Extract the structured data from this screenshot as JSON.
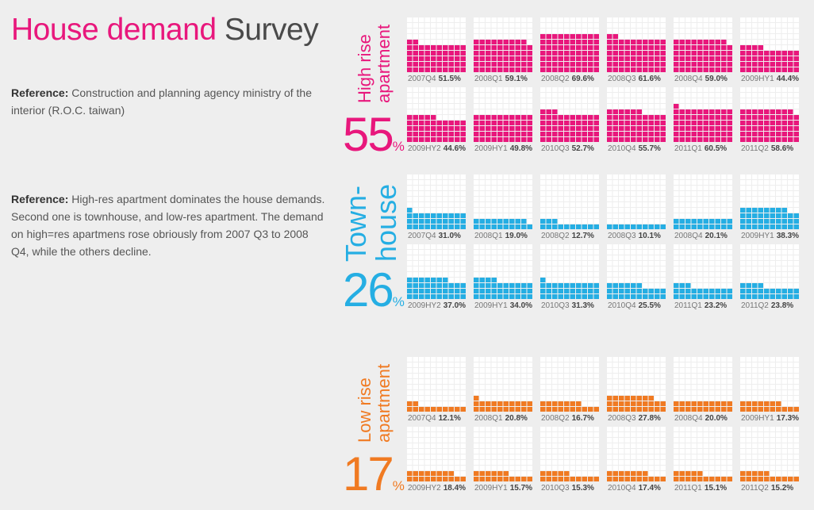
{
  "header": {
    "title_accent": "House demand",
    "title_rest": "Survey"
  },
  "references": [
    {
      "label": "Reference:",
      "text": "Construction and planning agency ministry of the interior (R.O.C. taiwan)"
    },
    {
      "label": "Reference:",
      "text": "High-res apartment dominates the house demands. Second one is townhouse, and low-res apartment. The demand on high=res apartmens rose obriously from 2007 Q3 to 2008 Q4, while the others decline."
    }
  ],
  "colors": {
    "background": "#eeeeee",
    "empty_cell": "#ffffff",
    "title_accent": "#e8177c",
    "text": "#555555"
  },
  "chart_data": {
    "type": "waffle",
    "series": [
      {
        "key": "high",
        "label_lines": [
          "High rise",
          "apartment"
        ],
        "color": "#e8177c",
        "overall_value": "55",
        "overall_unit": "%",
        "periods": [
          "2007Q4",
          "2008Q1",
          "2008Q2",
          "2008Q3",
          "2008Q4",
          "2009HY1",
          "2009HY2",
          "2009HY1",
          "2010Q3",
          "2010Q4",
          "2011Q1",
          "2011Q2"
        ],
        "values": [
          51.5,
          59.1,
          69.6,
          61.6,
          59.0,
          44.4,
          44.6,
          49.8,
          52.7,
          55.7,
          60.5,
          58.6
        ],
        "value_labels": [
          "51.5%",
          "59.1%",
          "69.6%",
          "61.6%",
          "59.0%",
          "44.4%",
          "44.6%",
          "49.8%",
          "52.7%",
          "55.7%",
          "60.5%",
          "58.6%"
        ]
      },
      {
        "key": "town",
        "label_lines": [
          "Town-",
          "house"
        ],
        "color": "#25aee3",
        "overall_value": "26",
        "overall_unit": "%",
        "periods": [
          "2007Q4",
          "2008Q1",
          "2008Q2",
          "2008Q3",
          "2008Q4",
          "2009HY1",
          "2009HY2",
          "2009HY1",
          "2010Q3",
          "2010Q4",
          "2011Q1",
          "2011Q2"
        ],
        "values": [
          31.0,
          19.0,
          12.7,
          10.1,
          20.1,
          38.3,
          37.0,
          34.0,
          31.3,
          25.5,
          23.2,
          23.8
        ],
        "value_labels": [
          "31.0%",
          "19.0%",
          "12.7%",
          "10.1%",
          "20.1%",
          "38.3%",
          "37.0%",
          "34.0%",
          "31.3%",
          "25.5%",
          "23.2%",
          "23.8%"
        ]
      },
      {
        "key": "low",
        "label_lines": [
          "Low rise",
          "apartment"
        ],
        "color": "#f07a22",
        "overall_value": "17",
        "overall_unit": "%",
        "periods": [
          "2007Q4",
          "2008Q1",
          "2008Q2",
          "2008Q3",
          "2008Q4",
          "2009HY1",
          "2009HY2",
          "2009HY1",
          "2010Q3",
          "2010Q4",
          "2011Q1",
          "2011Q2"
        ],
        "values": [
          12.1,
          20.8,
          16.7,
          27.8,
          20.0,
          17.3,
          18.4,
          15.7,
          15.3,
          17.4,
          15.1,
          15.2
        ],
        "value_labels": [
          "12.1%",
          "20.8%",
          "16.7%",
          "27.8%",
          "20.0%",
          "17.3%",
          "18.4%",
          "15.7%",
          "15.3%",
          "17.4%",
          "15.1%",
          "15.2%"
        ]
      }
    ]
  }
}
